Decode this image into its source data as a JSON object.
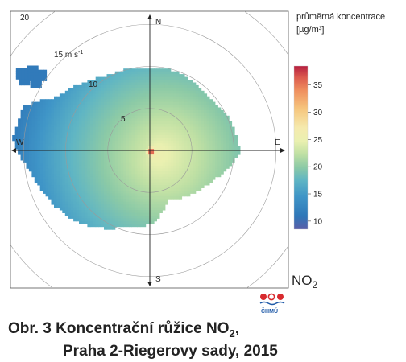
{
  "chart_data": {
    "type": "heatmap",
    "subtype": "polar-pollution-rose",
    "pollutant": "NO",
    "pollutant_sub": "2",
    "legend_title_line1": "průměrná koncentrace",
    "legend_title_line2": "[µg/m³]",
    "legend_ticks": [
      10,
      15,
      20,
      25,
      30,
      35
    ],
    "color_range": [
      8.5,
      38.5
    ],
    "colormap": [
      "#5a5ea8",
      "#2f77b8",
      "#3f95c7",
      "#5fb5c4",
      "#8ccaa6",
      "#bfe0a4",
      "#eaf0b0",
      "#f5eaae",
      "#f6c57d",
      "#ef8f5e",
      "#dc5a4e",
      "#b61f3f"
    ],
    "compass": {
      "north": "N",
      "east": "E",
      "south": "S",
      "west": "W"
    },
    "radial_labels": [
      "5",
      "10",
      "15 m s",
      "20"
    ],
    "radial_unit_exp": "-1",
    "radial_max": 20,
    "regions": [
      {
        "direction_deg": 0,
        "speed_min": 0,
        "speed_max": 10,
        "value": 20
      },
      {
        "direction_deg": 45,
        "speed_min": 0,
        "speed_max": 10,
        "value": 18
      },
      {
        "direction_deg": 90,
        "speed_min": 0,
        "speed_max": 10,
        "value": 20
      },
      {
        "direction_deg": 135,
        "speed_min": 0,
        "speed_max": 8,
        "value": 21
      },
      {
        "direction_deg": 180,
        "speed_min": 0,
        "speed_max": 8,
        "value": 18
      },
      {
        "direction_deg": 225,
        "speed_min": 0,
        "speed_max": 12,
        "value": 14
      },
      {
        "direction_deg": 270,
        "speed_min": 0,
        "speed_max": 14,
        "value": 13
      },
      {
        "direction_deg": 315,
        "speed_min": 0,
        "speed_max": 14,
        "value": 13
      },
      {
        "direction_deg": 0,
        "speed_min": 0,
        "speed_max": 0.5,
        "value": 37
      }
    ],
    "source_logo": "ČHMÚ"
  },
  "caption": {
    "prefix": "Obr. 3  Koncentrační růžice NO",
    "sub": "2",
    "suffix": ",",
    "line2": "Praha 2-Riegerovy sady, 2015"
  }
}
